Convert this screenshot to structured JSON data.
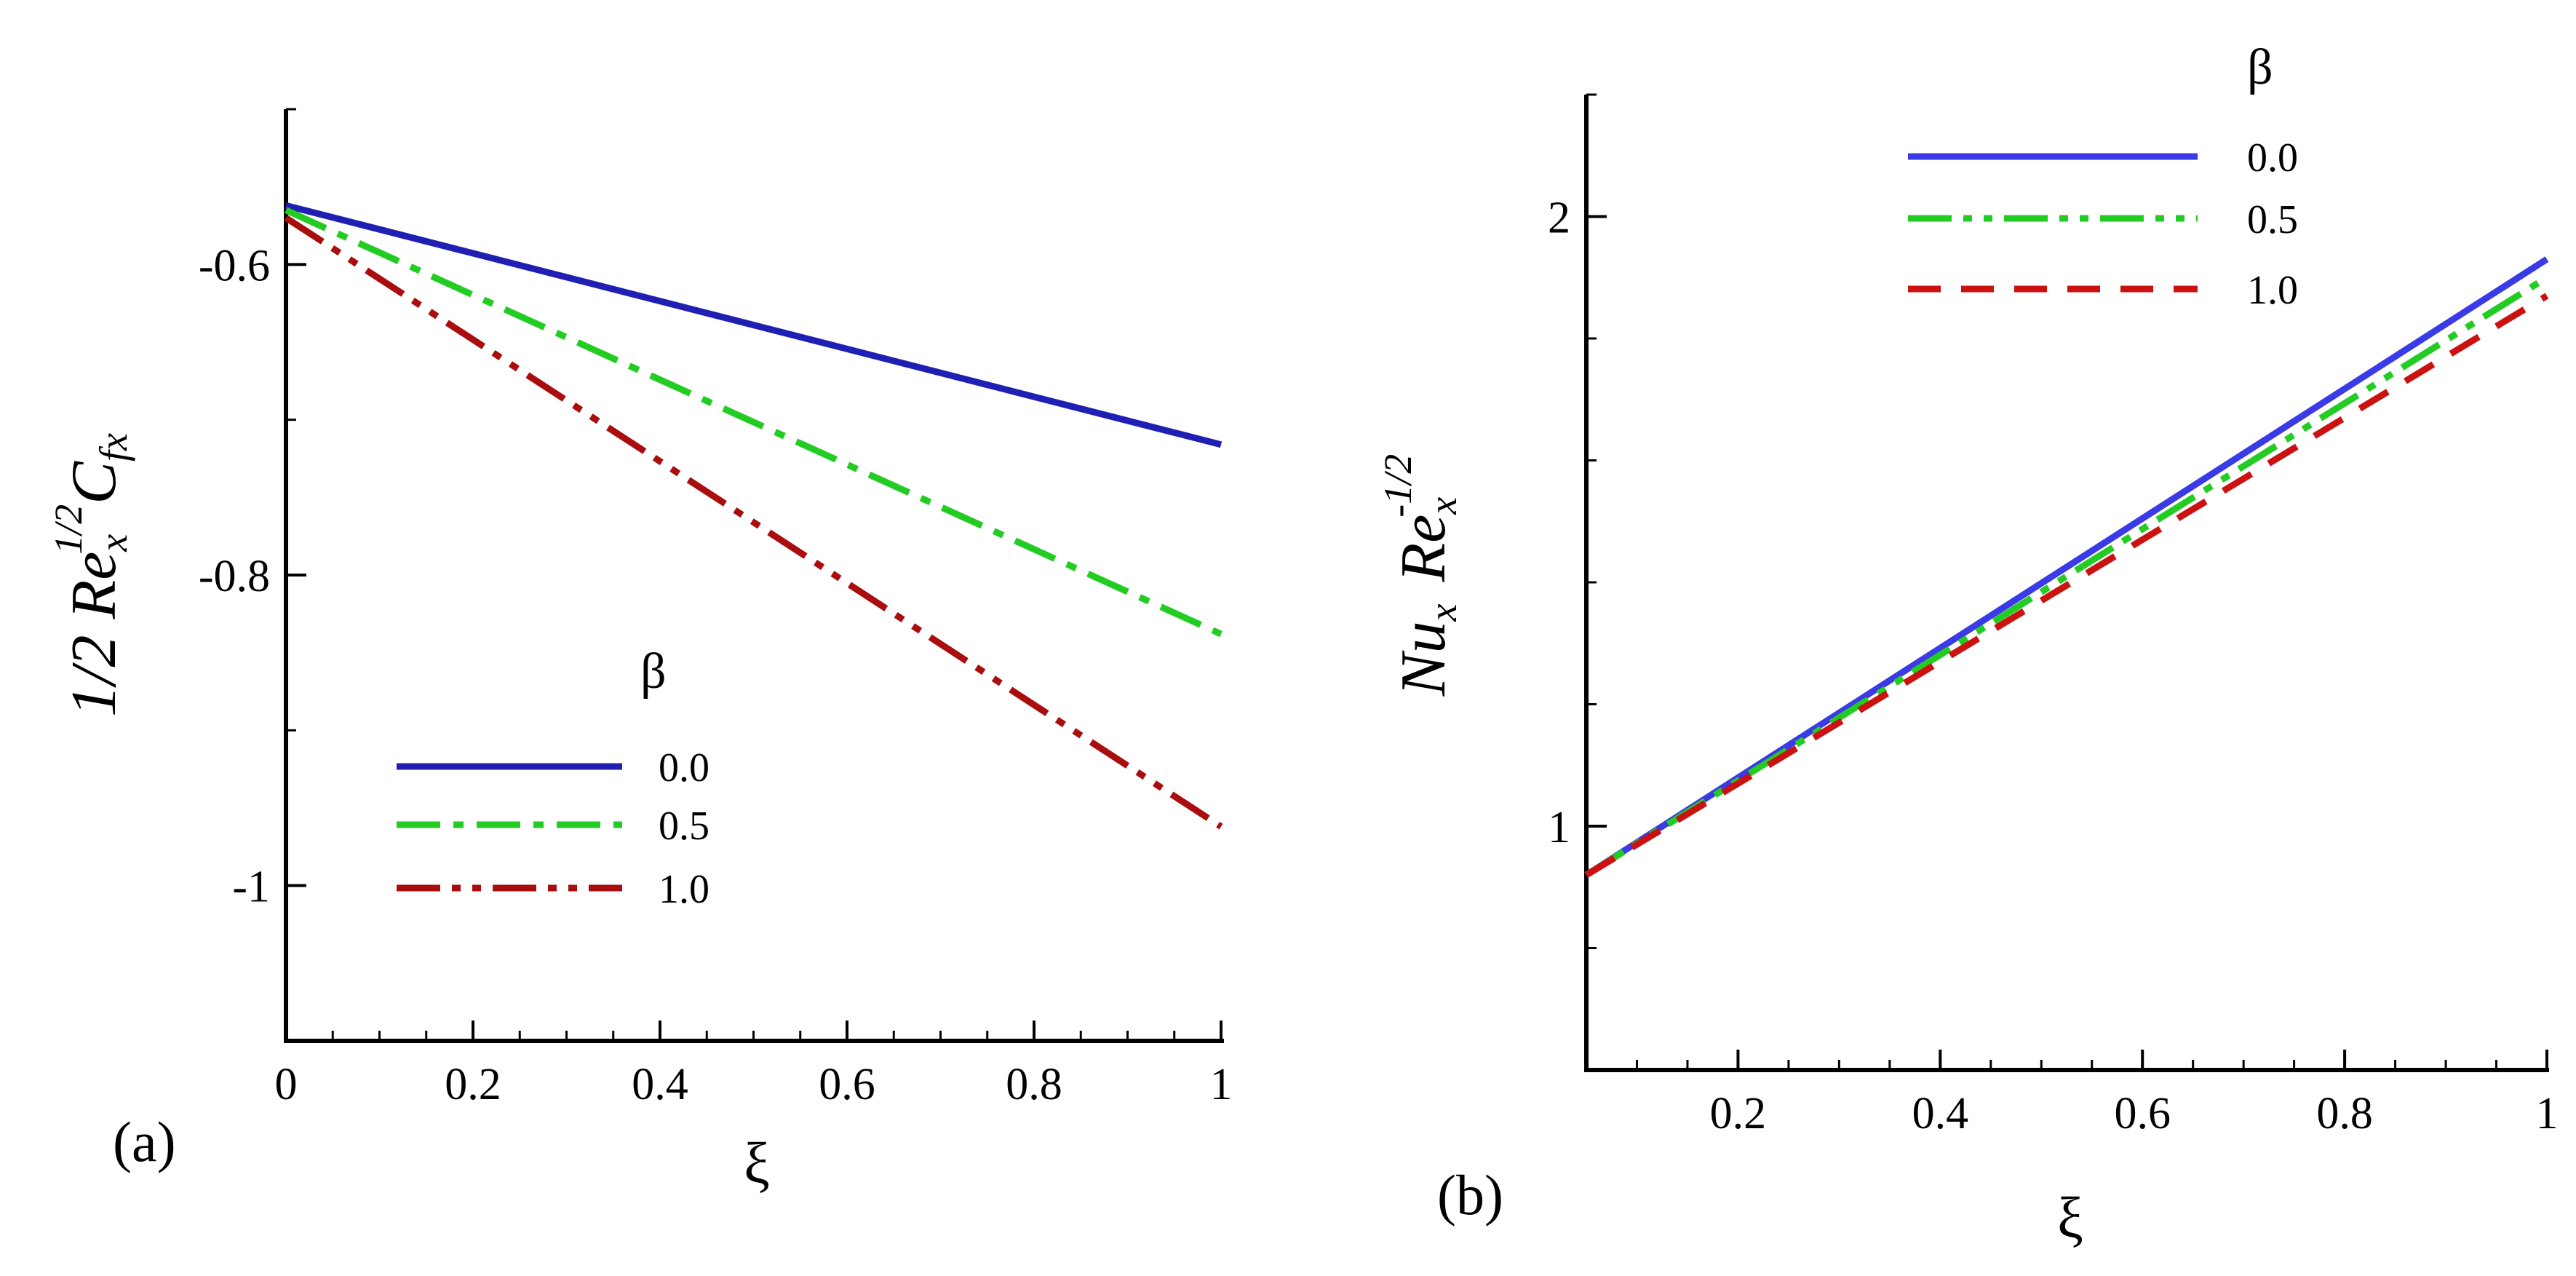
{
  "figure": {
    "background": "#ffffff",
    "axis_color": "#000000"
  },
  "chart_data": [
    {
      "type": "line",
      "panel_label": "(a)",
      "title": "",
      "xlabel": "ξ",
      "ylabel_parts": [
        "1/2 Re",
        "x",
        "1/2",
        "C",
        "fx"
      ],
      "xlim": [
        0,
        1
      ],
      "ylim": [
        -1.1,
        -0.5
      ],
      "xticks": [
        0,
        0.2,
        0.4,
        0.6,
        0.8,
        1
      ],
      "xtick_labels": [
        "0",
        "0.2",
        "0.4",
        "0.6",
        "0.8",
        "1"
      ],
      "xminor_step": 0.05,
      "yticks": [
        -1,
        -0.8,
        -0.6
      ],
      "ytick_labels": [
        "-1",
        "-0.8",
        "-0.6"
      ],
      "yminor_step": 0.1,
      "grid": false,
      "legend": {
        "title": "β",
        "placement": "lower-left"
      },
      "series": [
        {
          "name": "0.0",
          "color": "#1f1fb3",
          "dash": "solid",
          "x": [
            0,
            1
          ],
          "y": [
            -0.562,
            -0.716
          ]
        },
        {
          "name": "0.5",
          "color": "#22cc22",
          "dash": "dashdot",
          "x": [
            0,
            1
          ],
          "y": [
            -0.565,
            -0.838
          ]
        },
        {
          "name": "1.0",
          "color": "#aa0d0d",
          "dash": "dashdotdot",
          "x": [
            0,
            1
          ],
          "y": [
            -0.57,
            -0.962
          ]
        }
      ]
    },
    {
      "type": "line",
      "panel_label": "(b)",
      "title": "",
      "xlabel": "ξ",
      "ylabel_parts": [
        "Nu",
        "x",
        "Re",
        "x",
        "-1/2"
      ],
      "xlim": [
        0.05,
        1
      ],
      "ylim": [
        0.6,
        2.2
      ],
      "xticks": [
        0.2,
        0.4,
        0.6,
        0.8,
        1
      ],
      "xtick_labels": [
        "0.2",
        "0.4",
        "0.6",
        "0.8",
        "1"
      ],
      "xminor_step": 0.05,
      "yticks": [
        1,
        2
      ],
      "ytick_labels": [
        "1",
        "2"
      ],
      "yminor_step": 0.2,
      "grid": false,
      "legend": {
        "title": "β",
        "placement": "top-center"
      },
      "series": [
        {
          "name": "0.0",
          "color": "#3a3ae6",
          "dash": "solid",
          "x": [
            0.05,
            1
          ],
          "y": [
            0.92,
            1.93
          ]
        },
        {
          "name": "0.5",
          "color": "#22cc22",
          "dash": "dashdotdot",
          "x": [
            0.05,
            1
          ],
          "y": [
            0.92,
            1.9
          ]
        },
        {
          "name": "1.0",
          "color": "#cc1111",
          "dash": "dashed",
          "x": [
            0.05,
            1
          ],
          "y": [
            0.92,
            1.87
          ]
        }
      ]
    }
  ]
}
